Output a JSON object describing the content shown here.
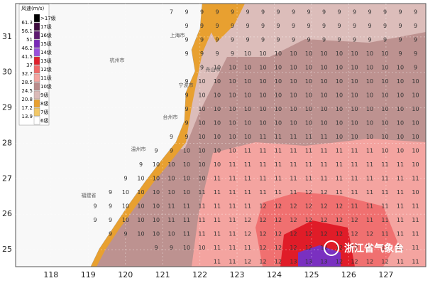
{
  "map": {
    "xlim": [
      117.05,
      128.07
    ],
    "ylim": [
      24.52,
      31.94
    ],
    "xticks": [
      118,
      119,
      120,
      121,
      122,
      123,
      124,
      125,
      126,
      127
    ],
    "yticks": [
      25,
      26,
      27,
      28,
      29,
      30,
      31
    ],
    "legend": {
      "title": "风速(m/s)",
      "entries": [
        {
          "speed": 61.3,
          "level": ">17级",
          "color": "#000000"
        },
        {
          "speed": 56.1,
          "level": "17级",
          "color": "#3c0a3c"
        },
        {
          "speed": 51.0,
          "level": "16级",
          "color": "#5e1a70"
        },
        {
          "speed": 46.2,
          "level": "15级",
          "color": "#7a2ab8"
        },
        {
          "speed": 41.5,
          "level": "14级",
          "color": "#9a50dc"
        },
        {
          "speed": 37.0,
          "level": "13级",
          "color": "#e0202c"
        },
        {
          "speed": 32.7,
          "level": "12级",
          "color": "#f06868"
        },
        {
          "speed": 28.5,
          "level": "11级",
          "color": "#f4a4a0"
        },
        {
          "speed": 24.5,
          "level": "10级",
          "color": "#b98a8a"
        },
        {
          "speed": 20.8,
          "level": "9级",
          "color": "#dabab8"
        },
        {
          "speed": 17.2,
          "level": "8级",
          "color": "#e8a030"
        },
        {
          "speed": 13.9,
          "level": "7级",
          "color": "#f2c868"
        },
        {
          "speed": null,
          "level": "6级",
          "color": "#ffffff"
        }
      ]
    },
    "grid": [
      [
        null,
        null,
        null,
        null,
        null,
        7,
        9,
        9,
        9,
        9,
        9,
        9,
        9,
        9,
        9,
        9,
        9,
        9,
        9,
        9,
        9,
        9
      ],
      [
        null,
        null,
        null,
        null,
        null,
        null,
        9,
        9,
        9,
        9,
        9,
        9,
        9,
        9,
        9,
        9,
        9,
        9,
        9,
        9,
        9,
        9
      ],
      [
        null,
        null,
        null,
        null,
        null,
        null,
        9,
        9,
        9,
        9,
        9,
        9,
        9,
        9,
        9,
        9,
        9,
        9,
        9,
        9,
        9,
        9
      ],
      [
        null,
        null,
        null,
        null,
        null,
        null,
        9,
        9,
        9,
        9,
        10,
        10,
        10,
        10,
        10,
        10,
        10,
        10,
        10,
        10,
        9,
        9
      ],
      [
        null,
        null,
        null,
        null,
        null,
        null,
        null,
        9,
        10,
        10,
        10,
        10,
        10,
        10,
        10,
        10,
        10,
        10,
        10,
        10,
        10,
        9
      ],
      [
        null,
        null,
        null,
        null,
        null,
        null,
        9,
        10,
        10,
        10,
        10,
        10,
        10,
        10,
        10,
        10,
        10,
        10,
        10,
        10,
        10,
        10
      ],
      [
        null,
        null,
        null,
        null,
        null,
        null,
        9,
        10,
        10,
        10,
        10,
        10,
        10,
        10,
        10,
        10,
        10,
        10,
        10,
        10,
        10,
        10
      ],
      [
        null,
        null,
        null,
        null,
        null,
        null,
        9,
        10,
        10,
        10,
        10,
        10,
        10,
        10,
        10,
        10,
        10,
        10,
        10,
        10,
        10,
        10
      ],
      [
        null,
        null,
        null,
        null,
        null,
        null,
        9,
        10,
        10,
        10,
        10,
        10,
        10,
        10,
        10,
        10,
        10,
        10,
        10,
        10,
        10,
        10
      ],
      [
        null,
        null,
        null,
        null,
        null,
        9,
        9,
        10,
        10,
        10,
        10,
        11,
        11,
        11,
        11,
        11,
        10,
        10,
        10,
        10,
        10,
        10
      ],
      [
        null,
        null,
        null,
        null,
        9,
        9,
        10,
        10,
        10,
        10,
        11,
        11,
        11,
        11,
        11,
        11,
        11,
        11,
        11,
        10,
        10,
        10
      ],
      [
        null,
        null,
        null,
        9,
        10,
        10,
        10,
        10,
        10,
        11,
        11,
        11,
        11,
        11,
        11,
        11,
        11,
        11,
        11,
        11,
        11,
        10
      ],
      [
        null,
        null,
        9,
        10,
        10,
        10,
        10,
        10,
        11,
        11,
        11,
        11,
        11,
        11,
        11,
        11,
        11,
        11,
        11,
        11,
        11,
        11
      ],
      [
        null,
        9,
        10,
        10,
        10,
        10,
        10,
        11,
        11,
        11,
        11,
        11,
        11,
        11,
        12,
        12,
        11,
        11,
        11,
        11,
        11,
        10
      ],
      [
        9,
        9,
        10,
        10,
        10,
        11,
        11,
        11,
        11,
        11,
        11,
        12,
        12,
        12,
        12,
        12,
        12,
        11,
        11,
        11,
        11,
        11
      ],
      [
        9,
        9,
        10,
        10,
        10,
        11,
        11,
        11,
        11,
        11,
        12,
        12,
        12,
        12,
        12,
        12,
        12,
        12,
        11,
        11,
        11,
        11
      ],
      [
        null,
        9,
        9,
        10,
        10,
        10,
        11,
        11,
        11,
        11,
        12,
        12,
        12,
        12,
        12,
        12,
        12,
        12,
        12,
        11,
        11,
        11
      ],
      [
        null,
        null,
        null,
        null,
        9,
        9,
        10,
        10,
        11,
        11,
        11,
        12,
        12,
        12,
        12,
        12,
        12,
        12,
        12,
        11,
        11,
        11
      ],
      [
        null,
        null,
        null,
        null,
        null,
        null,
        null,
        null,
        11,
        11,
        12,
        12,
        12,
        13,
        13,
        13,
        12,
        12,
        12,
        12,
        11,
        11
      ]
    ],
    "places": [
      "上海市",
      "舟山市",
      "宁波市",
      "台州市",
      "温州市",
      "杭州市",
      "福建省"
    ],
    "logo": "浙江省气象台"
  }
}
